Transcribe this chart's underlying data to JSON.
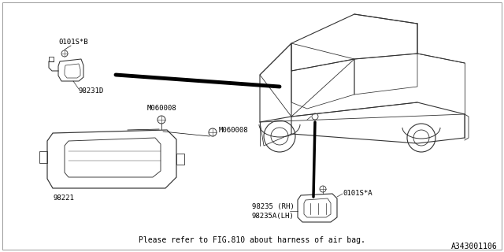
{
  "bg_color": "#ffffff",
  "fig_width": 6.4,
  "fig_height": 3.2,
  "dpi": 100,
  "footer_text": "Please refer to FIG.810 about harness of air bag.",
  "ref_code": "A343001106",
  "labels": {
    "label_0101SB": "0101S*B",
    "label_98231D": "98231D",
    "label_M060008_top": "M060008",
    "label_M060008_mid": "M060008",
    "label_98221": "98221",
    "label_0101SA": "0101S*A",
    "label_98235RH": "98235 (RH)",
    "label_98235LH": "98235A(LH)"
  },
  "draw_color": "#333333",
  "line_color": "#000000",
  "text_color": "#000000",
  "font_size_label": 6.5,
  "font_size_footer": 7.0,
  "font_size_ref": 7.0
}
